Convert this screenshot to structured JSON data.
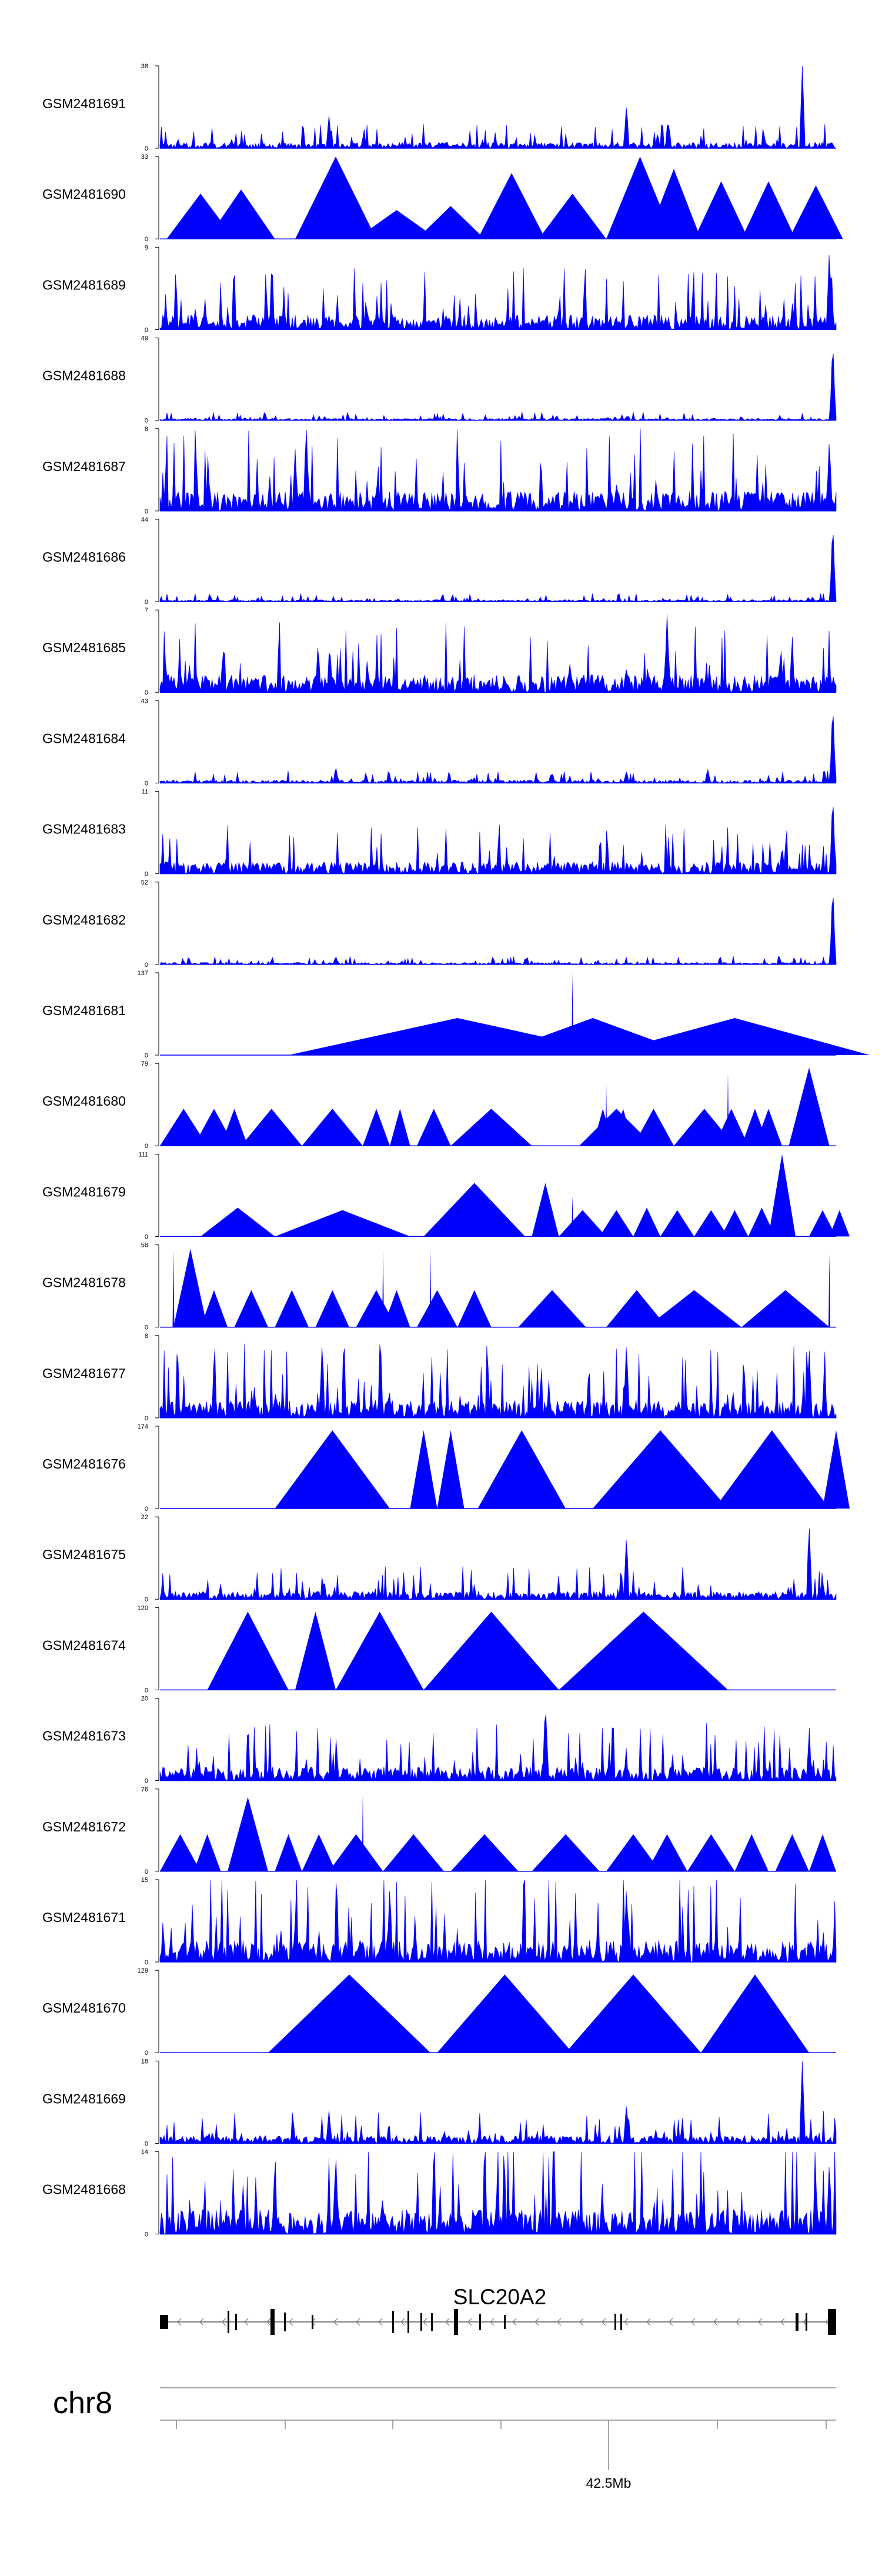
{
  "chart_data": {
    "type": "area",
    "title": "",
    "track_color": "#0000ff",
    "tracks": [
      {
        "name": "GSM2481691",
        "ymax": 38,
        "style": "dense",
        "baseline": 0.06,
        "peaks": [
          [
            0.25,
            0.4
          ],
          [
            0.69,
            0.55
          ],
          [
            0.95,
            1.0
          ]
        ]
      },
      {
        "name": "GSM2481690",
        "ymax": 33,
        "style": "tri",
        "tri": [
          [
            0.01,
            0.1,
            0.55
          ],
          [
            0.07,
            0.1,
            0.6
          ],
          [
            0.2,
            0.12,
            1.0
          ],
          [
            0.29,
            0.12,
            0.35
          ],
          [
            0.38,
            0.1,
            0.4
          ],
          [
            0.47,
            0.1,
            0.8
          ],
          [
            0.56,
            0.1,
            0.55
          ],
          [
            0.66,
            0.1,
            1.0
          ],
          [
            0.72,
            0.08,
            0.85
          ],
          [
            0.79,
            0.08,
            0.7
          ],
          [
            0.86,
            0.08,
            0.7
          ],
          [
            0.93,
            0.08,
            0.65
          ]
        ]
      },
      {
        "name": "GSM2481689",
        "ymax": 9,
        "style": "dense",
        "baseline": 0.15,
        "peaks": [
          [
            0.99,
            1.0
          ]
        ]
      },
      {
        "name": "GSM2481688",
        "ymax": 49,
        "style": "dense",
        "baseline": 0.02,
        "peaks": [
          [
            0.995,
            1.0
          ]
        ]
      },
      {
        "name": "GSM2481687",
        "ymax": 8,
        "style": "dense",
        "baseline": 0.2,
        "peaks": [
          [
            0.2,
            0.75
          ],
          [
            0.99,
            0.9
          ]
        ]
      },
      {
        "name": "GSM2481686",
        "ymax": 44,
        "style": "dense",
        "baseline": 0.02,
        "peaks": [
          [
            0.995,
            1.0
          ]
        ]
      },
      {
        "name": "GSM2481685",
        "ymax": 7,
        "style": "dense",
        "baseline": 0.18,
        "peaks": [
          [
            0.75,
            0.95
          ]
        ]
      },
      {
        "name": "GSM2481684",
        "ymax": 43,
        "style": "dense",
        "baseline": 0.03,
        "peaks": [
          [
            0.26,
            0.2
          ],
          [
            0.69,
            0.15
          ],
          [
            0.81,
            0.18
          ],
          [
            0.995,
            1.0
          ]
        ]
      },
      {
        "name": "GSM2481683",
        "ymax": 11,
        "style": "dense",
        "baseline": 0.12,
        "peaks": [
          [
            0.92,
            0.35
          ],
          [
            0.995,
            1.0
          ]
        ]
      },
      {
        "name": "GSM2481682",
        "ymax": 52,
        "style": "dense",
        "baseline": 0.02,
        "peaks": [
          [
            0.26,
            0.1
          ],
          [
            0.995,
            1.0
          ]
        ]
      },
      {
        "name": "GSM2481681",
        "ymax": 137,
        "style": "tri",
        "tri": [
          [
            0.19,
            0.5,
            0.45
          ],
          [
            0.49,
            0.3,
            0.45
          ],
          [
            0.65,
            0.4,
            0.45
          ]
        ],
        "peaks": [
          [
            0.61,
            1.0
          ]
        ]
      },
      {
        "name": "GSM2481680",
        "ymax": 79,
        "style": "tri",
        "tri": [
          [
            0.0,
            0.07,
            0.45
          ],
          [
            0.05,
            0.06,
            0.45
          ],
          [
            0.09,
            0.04,
            0.45
          ],
          [
            0.12,
            0.09,
            0.45
          ],
          [
            0.21,
            0.09,
            0.45
          ],
          [
            0.3,
            0.04,
            0.45
          ],
          [
            0.34,
            0.03,
            0.45
          ],
          [
            0.38,
            0.05,
            0.45
          ],
          [
            0.43,
            0.12,
            0.45
          ],
          [
            0.62,
            0.11,
            0.45
          ],
          [
            0.64,
            0.03,
            0.45
          ],
          [
            0.67,
            0.03,
            0.45
          ],
          [
            0.7,
            0.06,
            0.45
          ],
          [
            0.76,
            0.09,
            0.45
          ],
          [
            0.82,
            0.05,
            0.45
          ],
          [
            0.86,
            0.04,
            0.45
          ],
          [
            0.88,
            0.04,
            0.45
          ],
          [
            0.93,
            0.06,
            0.95
          ]
        ],
        "peaks": [
          [
            0.66,
            0.75
          ],
          [
            0.84,
            0.9
          ]
        ]
      },
      {
        "name": "GSM2481679",
        "ymax": 111,
        "style": "tri",
        "tri": [
          [
            0.06,
            0.11,
            0.35
          ],
          [
            0.17,
            0.2,
            0.32
          ],
          [
            0.39,
            0.15,
            0.65
          ],
          [
            0.55,
            0.04,
            0.65
          ],
          [
            0.59,
            0.07,
            0.32
          ],
          [
            0.65,
            0.05,
            0.32
          ],
          [
            0.7,
            0.04,
            0.35
          ],
          [
            0.74,
            0.05,
            0.32
          ],
          [
            0.79,
            0.05,
            0.32
          ],
          [
            0.83,
            0.04,
            0.32
          ],
          [
            0.87,
            0.04,
            0.35
          ],
          [
            0.9,
            0.04,
            1.0
          ],
          [
            0.96,
            0.04,
            0.32
          ],
          [
            0.99,
            0.03,
            0.32
          ]
        ],
        "peaks": [
          [
            0.61,
            0.5
          ]
        ]
      },
      {
        "name": "GSM2481678",
        "ymax": 58,
        "style": "tri",
        "tri": [
          [
            0.02,
            0.05,
            0.95
          ],
          [
            0.06,
            0.04,
            0.45
          ],
          [
            0.11,
            0.05,
            0.45
          ],
          [
            0.17,
            0.05,
            0.45
          ],
          [
            0.23,
            0.05,
            0.45
          ],
          [
            0.29,
            0.06,
            0.45
          ],
          [
            0.33,
            0.04,
            0.45
          ],
          [
            0.38,
            0.06,
            0.45
          ],
          [
            0.44,
            0.05,
            0.45
          ],
          [
            0.53,
            0.1,
            0.45
          ],
          [
            0.66,
            0.09,
            0.45
          ],
          [
            0.72,
            0.14,
            0.45
          ],
          [
            0.86,
            0.13,
            0.45
          ]
        ],
        "peaks": [
          [
            0.02,
            0.95
          ],
          [
            0.33,
            0.95
          ],
          [
            0.4,
            0.95
          ],
          [
            0.99,
            0.9
          ]
        ]
      },
      {
        "name": "GSM2481677",
        "ymax": 8,
        "style": "dense",
        "baseline": 0.18,
        "peaks": [
          [
            0.24,
            0.95
          ],
          [
            0.69,
            0.95
          ],
          [
            0.96,
            0.9
          ]
        ]
      },
      {
        "name": "GSM2481676",
        "ymax": 174,
        "style": "tri",
        "tri": [
          [
            0.17,
            0.17,
            0.95
          ],
          [
            0.37,
            0.04,
            0.95
          ],
          [
            0.41,
            0.04,
            0.95
          ],
          [
            0.47,
            0.13,
            0.95
          ],
          [
            0.64,
            0.2,
            0.95
          ],
          [
            0.82,
            0.17,
            0.95
          ],
          [
            0.98,
            0.04,
            0.95
          ]
        ]
      },
      {
        "name": "GSM2481675",
        "ymax": 22,
        "style": "dense",
        "baseline": 0.08,
        "peaks": [
          [
            0.69,
            0.8
          ],
          [
            0.96,
            0.95
          ]
        ]
      },
      {
        "name": "GSM2481674",
        "ymax": 120,
        "style": "tri",
        "tri": [
          [
            0.07,
            0.12,
            0.95
          ],
          [
            0.2,
            0.06,
            0.95
          ],
          [
            0.26,
            0.13,
            0.95
          ],
          [
            0.39,
            0.2,
            0.95
          ],
          [
            0.59,
            0.25,
            0.95
          ]
        ]
      },
      {
        "name": "GSM2481673",
        "ymax": 20,
        "style": "dense",
        "baseline": 0.14,
        "peaks": [
          [
            0.57,
            1.0
          ],
          [
            0.96,
            0.55
          ]
        ]
      },
      {
        "name": "GSM2481672",
        "ymax": 76,
        "style": "tri",
        "tri": [
          [
            0.0,
            0.06,
            0.45
          ],
          [
            0.05,
            0.04,
            0.45
          ],
          [
            0.1,
            0.06,
            0.9
          ],
          [
            0.17,
            0.04,
            0.45
          ],
          [
            0.21,
            0.05,
            0.45
          ],
          [
            0.25,
            0.08,
            0.45
          ],
          [
            0.33,
            0.09,
            0.45
          ],
          [
            0.43,
            0.1,
            0.45
          ],
          [
            0.55,
            0.1,
            0.45
          ],
          [
            0.66,
            0.08,
            0.45
          ],
          [
            0.72,
            0.06,
            0.45
          ],
          [
            0.78,
            0.07,
            0.45
          ],
          [
            0.85,
            0.05,
            0.45
          ],
          [
            0.91,
            0.05,
            0.45
          ],
          [
            0.96,
            0.04,
            0.45
          ]
        ],
        "peaks": [
          [
            0.3,
            0.95
          ]
        ]
      },
      {
        "name": "GSM2481671",
        "ymax": 15,
        "style": "dense",
        "baseline": 0.22,
        "peaks": [
          [
            0.34,
            0.95
          ],
          [
            0.69,
            0.95
          ]
        ]
      },
      {
        "name": "GSM2481670",
        "ymax": 129,
        "style": "tri",
        "tri": [
          [
            0.16,
            0.24,
            0.95
          ],
          [
            0.41,
            0.2,
            0.95
          ],
          [
            0.6,
            0.2,
            0.95
          ],
          [
            0.8,
            0.16,
            0.95
          ]
        ]
      },
      {
        "name": "GSM2481669",
        "ymax": 18,
        "style": "dense",
        "baseline": 0.08,
        "peaks": [
          [
            0.25,
            0.4
          ],
          [
            0.69,
            0.5
          ],
          [
            0.95,
            1.0
          ]
        ]
      },
      {
        "name": "GSM2481668",
        "ymax": 14,
        "style": "dense",
        "baseline": 0.25,
        "peaks": [
          [
            0.26,
            1.0
          ],
          [
            0.99,
            0.9
          ]
        ]
      }
    ],
    "gene": "SLC20A2",
    "chromosome": "chr8",
    "tick_label": "42.5Mb"
  }
}
